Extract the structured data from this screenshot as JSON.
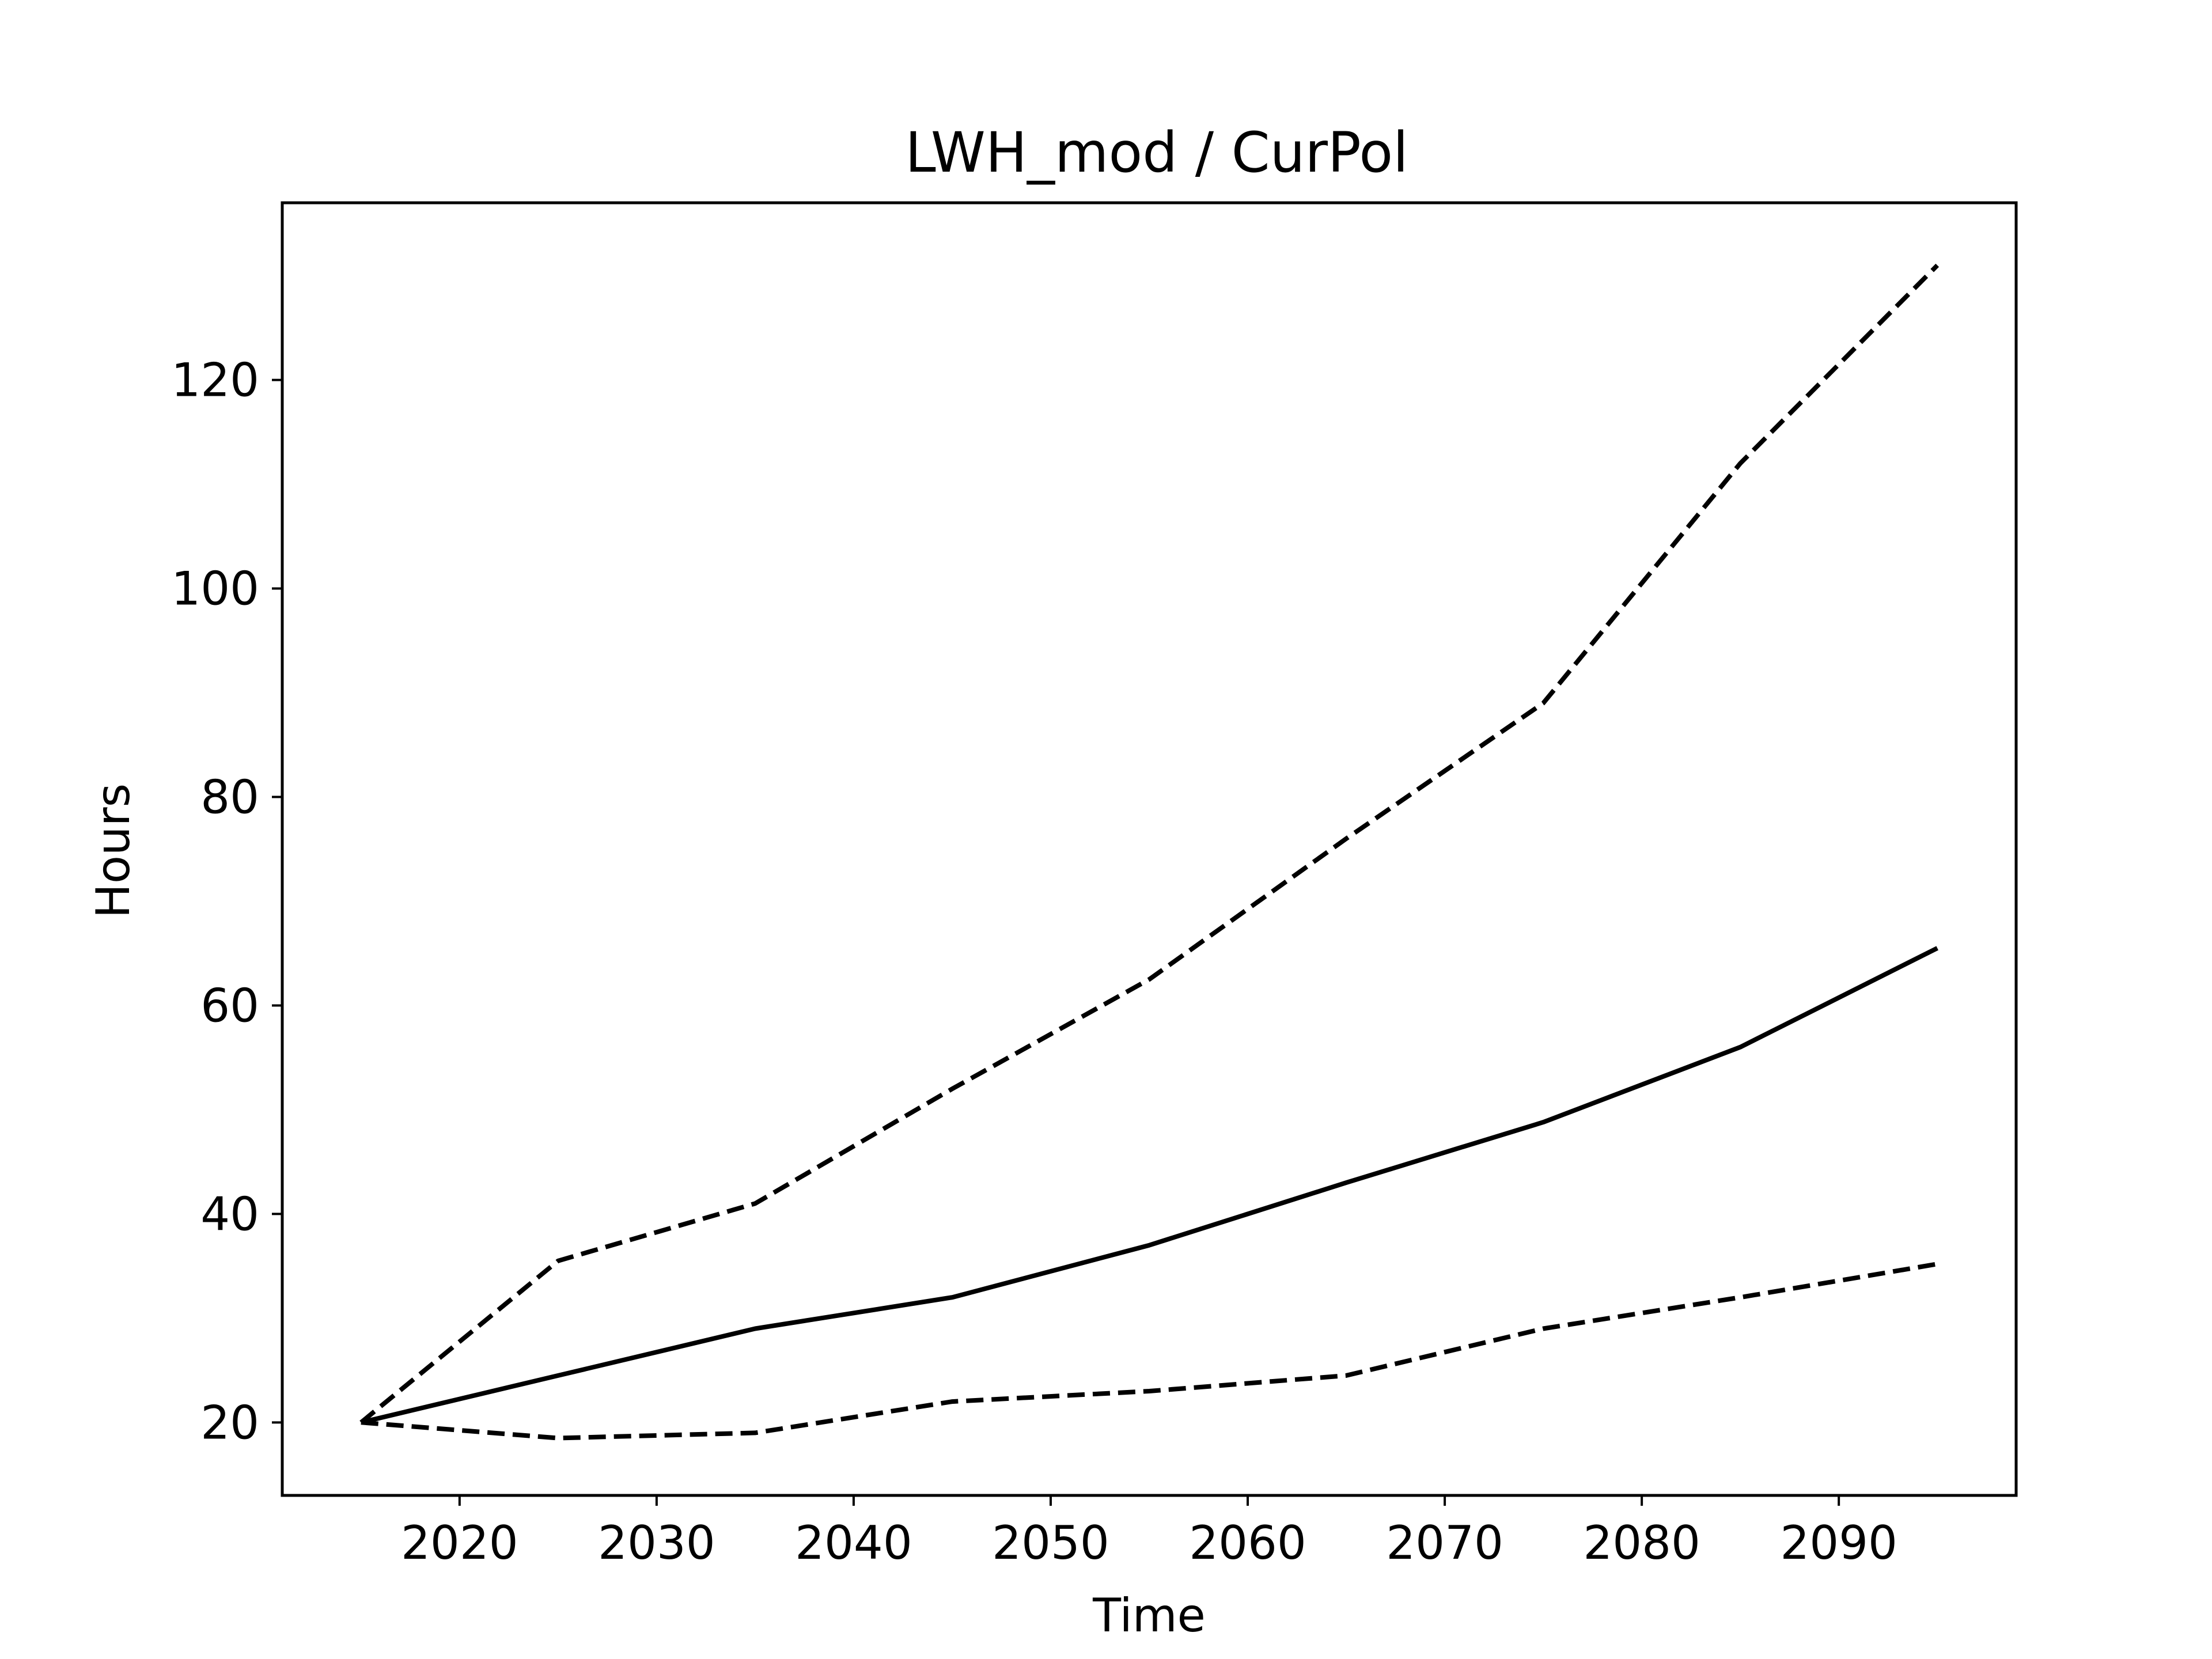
{
  "chart_data": {
    "type": "line",
    "title": "LWH_mod / CurPol",
    "xlabel": "Time",
    "ylabel": "Hours",
    "xlim": [
      2011,
      2099
    ],
    "ylim": [
      13,
      137
    ],
    "xticks": [
      2020,
      2030,
      2040,
      2050,
      2060,
      2070,
      2080,
      2090
    ],
    "yticks": [
      20,
      40,
      60,
      80,
      100,
      120
    ],
    "grid": false,
    "legend": "none",
    "x": [
      2015,
      2025,
      2035,
      2045,
      2055,
      2065,
      2075,
      2085,
      2095
    ],
    "series": [
      {
        "style": "solid",
        "color": "#000000",
        "values": [
          20.0,
          24.5,
          29.0,
          32.0,
          37.0,
          43.0,
          48.8,
          56.0,
          65.5
        ]
      },
      {
        "style": "dashed",
        "color": "#000000",
        "values": [
          20.0,
          35.5,
          41.0,
          52.0,
          62.5,
          76.0,
          89.0,
          112.0,
          131.0
        ]
      },
      {
        "style": "dashed",
        "color": "#000000",
        "values": [
          20.0,
          18.5,
          19.0,
          22.0,
          23.0,
          24.5,
          29.0,
          32.0,
          35.2
        ]
      }
    ]
  }
}
